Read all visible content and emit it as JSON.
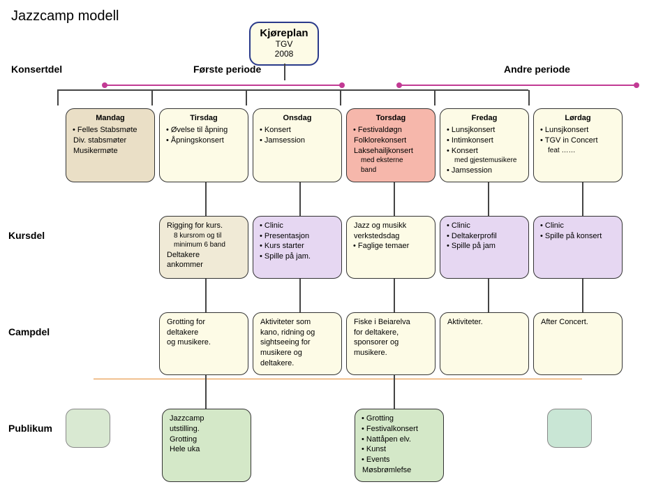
{
  "page_title": "Jazzcamp modell",
  "header": {
    "left_label": "Konsertdel",
    "mid_label": "Første periode",
    "right_label": "Andre periode",
    "plan": {
      "title": "Kjøreplan",
      "line1": "TGV",
      "line2": "2008",
      "border": "#2a3a8a",
      "bg": "#fdfbe6"
    }
  },
  "colors": {
    "tan": "#eadfc6",
    "cream": "#fdfbe6",
    "salmon": "#f6b7ab",
    "lilac": "#e6d7f2",
    "grey": "#f0ead6",
    "green": "#d4e8c8",
    "mint": "#c9e6d5",
    "connector_pink": "#c23a94",
    "connector_orange": "#e58a2e"
  },
  "row_labels": {
    "kurs": "Kursdel",
    "camp": "Campdel",
    "pub": "Publikum"
  },
  "konsert_cards": [
    {
      "bg": "tan",
      "lines": [
        {
          "t": "day",
          "v": "Mandag"
        },
        {
          "t": "b",
          "v": "Felles Stabsmøte"
        },
        {
          "t": "p",
          "v": "Div. stabsmøter"
        },
        {
          "t": "p",
          "v": "Musikermøte"
        }
      ]
    },
    {
      "bg": "cream",
      "lines": [
        {
          "t": "day",
          "v": "Tirsdag"
        },
        {
          "t": "b",
          "v": "Øvelse til åpning"
        },
        {
          "t": "b",
          "v": "Åpningskonsert"
        }
      ]
    },
    {
      "bg": "cream",
      "lines": [
        {
          "t": "day",
          "v": "Onsdag"
        },
        {
          "t": "b",
          "v": "Konsert"
        },
        {
          "t": "b",
          "v": "Jamsession"
        }
      ]
    },
    {
      "bg": "salmon",
      "lines": [
        {
          "t": "day",
          "v": "Torsdag"
        },
        {
          "t": "b",
          "v": "Festivaldøgn"
        },
        {
          "t": "p",
          "v": "Folklorekonsert"
        },
        {
          "t": "p",
          "v": "Laksehailjkonsert"
        },
        {
          "t": "s",
          "v": "med eksterne"
        },
        {
          "t": "s",
          "v": "band"
        }
      ]
    },
    {
      "bg": "cream",
      "lines": [
        {
          "t": "day",
          "v": "Fredag"
        },
        {
          "t": "b",
          "v": "Lunsjkonsert"
        },
        {
          "t": "b",
          "v": "Intimkonsert"
        },
        {
          "t": "b",
          "v": "Konsert"
        },
        {
          "t": "s",
          "v": "med gjestemusikere"
        },
        {
          "t": "b",
          "v": "Jamsession"
        }
      ]
    },
    {
      "bg": "cream",
      "lines": [
        {
          "t": "day",
          "v": "Lørdag"
        },
        {
          "t": "b",
          "v": "Lunsjkonsert"
        },
        {
          "t": "b",
          "v": "TGV in Concert"
        },
        {
          "t": "s",
          "v": "feat ……"
        }
      ]
    }
  ],
  "kurs_cards": [
    {
      "bg": "grey",
      "lines": [
        {
          "t": "p",
          "v": "Rigging for kurs."
        },
        {
          "t": "s",
          "v": "8 kursrom og til"
        },
        {
          "t": "s",
          "v": "minimum 6 band"
        },
        {
          "t": "p",
          "v": " "
        },
        {
          "t": "p",
          "v": "Deltakere"
        },
        {
          "t": "p",
          "v": "ankommer"
        }
      ]
    },
    {
      "bg": "lilac",
      "lines": [
        {
          "t": "b",
          "v": "Clinic"
        },
        {
          "t": "b",
          "v": "Presentasjon"
        },
        {
          "t": "b",
          "v": "Kurs starter"
        },
        {
          "t": "b",
          "v": "Spille på jam."
        }
      ]
    },
    {
      "bg": "cream",
      "lines": [
        {
          "t": "p",
          "v": "Jazz og musikk"
        },
        {
          "t": "p",
          "v": "verkstedsdag"
        },
        {
          "t": "p",
          "v": " "
        },
        {
          "t": "b",
          "v": "Faglige temaer"
        }
      ]
    },
    {
      "bg": "lilac",
      "lines": [
        {
          "t": "b",
          "v": "Clinic"
        },
        {
          "t": "b",
          "v": "Deltakerprofil"
        },
        {
          "t": "b",
          "v": "Spille på jam"
        }
      ]
    },
    {
      "bg": "lilac",
      "lines": [
        {
          "t": "b",
          "v": "Clinic"
        },
        {
          "t": "b",
          "v": "Spille på konsert"
        }
      ]
    }
  ],
  "camp_cards": [
    {
      "bg": "cream",
      "lines": [
        {
          "t": "p",
          "v": "Grotting for"
        },
        {
          "t": "p",
          "v": "deltakere"
        },
        {
          "t": "p",
          "v": "og musikere."
        }
      ]
    },
    {
      "bg": "cream",
      "lines": [
        {
          "t": "p",
          "v": "Aktiviteter som"
        },
        {
          "t": "p",
          "v": "kano, ridning og"
        },
        {
          "t": "p",
          "v": "sightseeing for"
        },
        {
          "t": "p",
          "v": "musikere og"
        },
        {
          "t": "p",
          "v": "deltakere."
        }
      ]
    },
    {
      "bg": "cream",
      "lines": [
        {
          "t": "p",
          "v": "Fiske i Beiarelva"
        },
        {
          "t": "p",
          "v": "for deltakere,"
        },
        {
          "t": "p",
          "v": "sponsorer og"
        },
        {
          "t": "p",
          "v": "musikere."
        }
      ]
    },
    {
      "bg": "cream",
      "lines": [
        {
          "t": "p",
          "v": "Aktiviteter."
        }
      ]
    },
    {
      "bg": "cream",
      "lines": [
        {
          "t": "p",
          "v": "After Concert."
        }
      ]
    }
  ],
  "pub_cards": [
    {
      "bg": "green",
      "lines": [
        {
          "t": "p",
          "v": "Jazzcamp"
        },
        {
          "t": "p",
          "v": "utstilling."
        },
        {
          "t": "p",
          "v": " "
        },
        {
          "t": "p",
          "v": "Grotting"
        },
        {
          "t": "p",
          "v": " "
        },
        {
          "t": "p",
          "v": "Hele uka"
        }
      ]
    },
    {
      "bg": "green",
      "lines": [
        {
          "t": "b",
          "v": "Grotting"
        },
        {
          "t": "b",
          "v": "Festivalkonsert"
        },
        {
          "t": "b",
          "v": "Nattåpen elv."
        },
        {
          "t": "b",
          "v": "Kunst"
        },
        {
          "t": "b",
          "v": "Events"
        },
        {
          "t": "p",
          "v": "Møsbrømlefse"
        }
      ]
    }
  ]
}
